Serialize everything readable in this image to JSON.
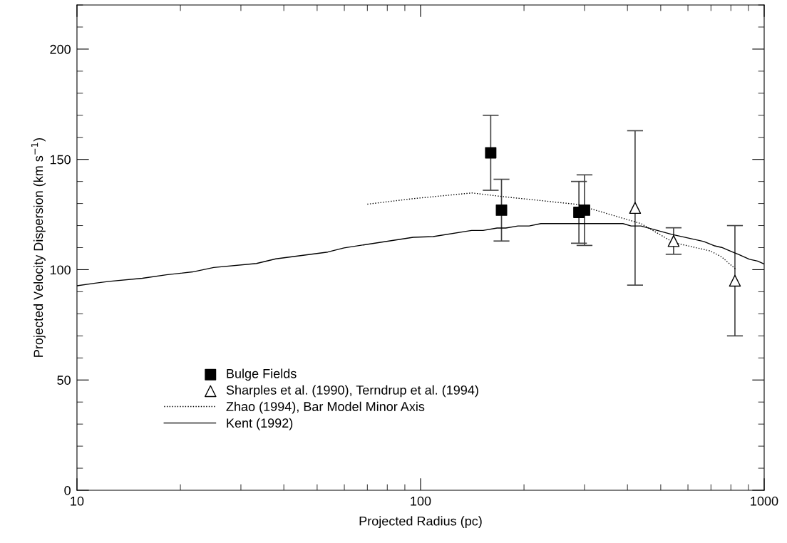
{
  "chart_data": {
    "type": "scatter",
    "xlabel": "Projected Radius (pc)",
    "ylabel": "Projected Velocity Dispersion (km s$^{−1}$)",
    "log": "x",
    "xlim": [
      10,
      1000
    ],
    "xticks": [
      10,
      100,
      1000
    ],
    "ylim": [
      0,
      220
    ],
    "yticks": [
      0,
      50,
      100,
      150,
      200
    ],
    "grid": false,
    "legend": "bottom left",
    "series": [
      {
        "name": "Bulge Fields",
        "marker": "square",
        "color": "#000000",
        "x": [
          160,
          172,
          289,
          300
        ],
        "values": [
          153,
          127,
          126,
          127
        ],
        "errors": [
          [
            136,
            170
          ],
          [
            113,
            141
          ],
          [
            112,
            140
          ],
          [
            111,
            143
          ]
        ]
      },
      {
        "name": "Sharples et al. (1990), Terndrup et al. (1994)",
        "marker": "triangle",
        "color": "#000000",
        "x": [
          421,
          545,
          822
        ],
        "values": [
          128,
          113,
          95
        ],
        "errors": [
          [
            93,
            163
          ],
          [
            107,
            119
          ],
          [
            70,
            120
          ]
        ]
      },
      {
        "name": "Zhao (1994), Bar Model Minor Axis",
        "type": "line",
        "line_style": "dotted",
        "marker": "none",
        "color": "#000000",
        "x": [
          70,
          95,
          141,
          172,
          290,
          310,
          438,
          545,
          697,
          752,
          831
        ],
        "values": [
          129.7,
          132.2,
          134.8,
          133.2,
          129.5,
          127.8,
          120.9,
          112.3,
          108.5,
          105.8,
          99.9
        ]
      },
      {
        "name": "Kent (1992)",
        "type": "line",
        "line_style": "solid",
        "marker": "none",
        "color": "#000000",
        "x": [
          10,
          11.3,
          12.4,
          15.5,
          18.2,
          21.7,
          25,
          33.3,
          37.9,
          53.7,
          59.9,
          95.2,
          108.8,
          140.8,
          152,
          167,
          177,
          192,
          207,
          224,
          388,
          410,
          438,
          538,
          667,
          714,
          752,
          809,
          843,
          906,
          957,
          1000
        ],
        "values": [
          92.7,
          93.9,
          94.7,
          96.1,
          97.7,
          99,
          101,
          102.8,
          104.9,
          108,
          109.9,
          114.7,
          115,
          117.8,
          117.8,
          118.9,
          118.9,
          119.8,
          119.8,
          120.9,
          120.9,
          119.8,
          119.8,
          116,
          112.8,
          110.9,
          110.1,
          108,
          106.9,
          104.7,
          103.9,
          102.6
        ]
      }
    ]
  }
}
